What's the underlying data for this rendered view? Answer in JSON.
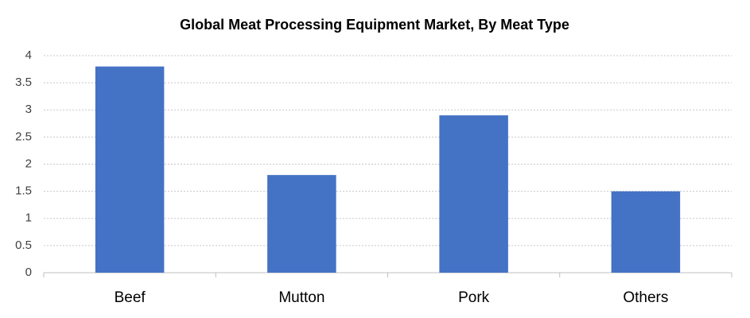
{
  "chart_data": {
    "type": "bar",
    "title": "Global Meat Processing Equipment Market, By Meat Type",
    "categories": [
      "Beef",
      "Mutton",
      "Pork",
      "Others"
    ],
    "values": [
      3.8,
      1.8,
      2.9,
      1.5
    ],
    "color": "#4472c4",
    "ylim": [
      0,
      4
    ],
    "yticks": [
      0,
      0.5,
      1,
      1.5,
      2,
      2.5,
      3,
      3.5,
      4
    ],
    "grid": true
  }
}
